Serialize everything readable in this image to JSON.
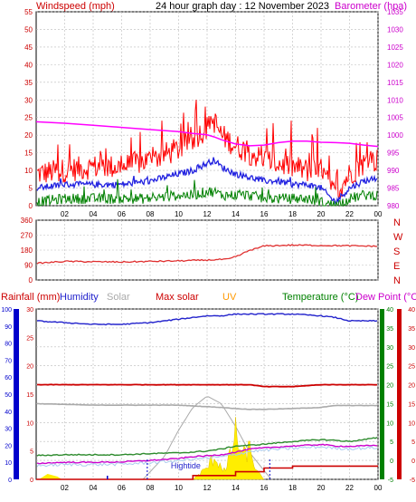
{
  "header": {
    "left_label": "Windspeed (mph)",
    "title": "24 hour graph day : 12 November 2023",
    "right_label": "Barometer (hpa)"
  },
  "legend_row": {
    "rainfall": "Rainfall (mm)",
    "humidity": "Humidity",
    "solar": "Solar",
    "max_solar": "Max solar",
    "uv": "UV",
    "temperature": "Temperature (°C)",
    "dew_point": "Dew Point (°C)"
  },
  "hightide_label": "Hightide",
  "x_ticks": [
    "02",
    "04",
    "06",
    "08",
    "10",
    "12",
    "14",
    "16",
    "18",
    "20",
    "22",
    "00"
  ],
  "colors": {
    "wind_gust": "#ff0000",
    "wind_avg": "#2323e0",
    "wind_low": "#008000",
    "barometer": "#ff00ff",
    "direction": "#e03030",
    "rain_axis": "#0000cc",
    "humidity": "#2222cc",
    "max_solar": "#cc0000",
    "solar": "#aaaaaa",
    "uv": "#ff9900",
    "temperature": "#2e8b2e",
    "dew_point": "#cc00cc",
    "rain_total": "#cc0000",
    "solar_fill": "#ffee00"
  },
  "chart_data": [
    {
      "type": "line",
      "title": "24 hour graph day : 12 November 2023",
      "ylabel": "Windspeed (mph)",
      "y2label": "Barometer (hpa)",
      "ylim": [
        0,
        55
      ],
      "y2lim": [
        980,
        1035
      ],
      "yticks": [
        "0",
        "5",
        "10",
        "15",
        "20",
        "25",
        "30",
        "35",
        "40",
        "45",
        "50",
        "55"
      ],
      "y2ticks": [
        "980",
        "985",
        "990",
        "995",
        "1000",
        "1005",
        "1010",
        "1015",
        "1020",
        "1025",
        "1030",
        "1035"
      ],
      "x_hours": [
        0,
        2,
        4,
        6,
        8,
        10,
        11,
        12,
        12.5,
        13,
        14,
        15,
        16,
        17,
        18,
        19,
        20,
        21,
        22,
        23,
        24
      ],
      "series": [
        {
          "name": "Gust",
          "values": [
            9,
            10,
            11,
            11,
            13,
            16,
            19,
            22,
            24,
            20,
            17,
            15,
            13,
            12,
            11,
            10,
            10,
            3,
            9,
            12,
            13
          ]
        },
        {
          "name": "Average",
          "values": [
            5,
            6,
            6,
            6,
            7,
            9,
            10,
            12,
            13,
            11,
            9,
            8,
            7,
            7,
            6,
            6,
            5,
            1,
            5,
            7,
            8
          ]
        },
        {
          "name": "Low",
          "values": [
            1,
            2,
            2,
            2,
            2,
            3,
            3,
            4,
            4,
            3,
            3,
            3,
            2,
            2,
            2,
            2,
            1,
            0,
            2,
            3,
            3
          ]
        },
        {
          "name": "Barometer",
          "values": [
            1003.8,
            1003.4,
            1002.8,
            1002.2,
            1001.6,
            1001.0,
            1000.5,
            1000.1,
            999.5,
            998.7,
            997.5,
            997.0,
            997.2,
            997.9,
            998.3,
            998.3,
            998.0,
            997.9,
            997.7,
            997.2,
            996.8
          ]
        }
      ]
    },
    {
      "type": "line",
      "ylabel": "Wind direction",
      "yticks": [
        "0",
        "90",
        "180",
        "270",
        "360"
      ],
      "direction_labels": [
        "N",
        "W",
        "S",
        "E",
        "N"
      ],
      "ylim": [
        0,
        360
      ],
      "x_hours": [
        0,
        2,
        4,
        6,
        8,
        10,
        12,
        13.5,
        14.3,
        15,
        15.5,
        16,
        18,
        20,
        22,
        24
      ],
      "series": [
        {
          "name": "Direction",
          "values": [
            100,
            112,
            110,
            108,
            112,
            115,
            120,
            125,
            150,
            180,
            190,
            205,
            210,
            208,
            206,
            203
          ]
        }
      ]
    },
    {
      "type": "line",
      "ylabel": "Rainfall (mm)",
      "rain_ticks": [
        "0",
        "10",
        "20",
        "30",
        "40",
        "50",
        "60",
        "70",
        "80",
        "90",
        "100"
      ],
      "humidity_ticks": [
        "0",
        "5",
        "10",
        "15",
        "20",
        "25",
        "30"
      ],
      "temp_left_ticks": [
        "-5",
        "0",
        "5",
        "10",
        "15",
        "20",
        "25",
        "30",
        "35",
        "40"
      ],
      "temp_right_ticks": [
        "-5",
        "0",
        "5",
        "10",
        "15",
        "20",
        "25",
        "30",
        "35",
        "40"
      ],
      "x_hours": [
        0,
        2,
        4,
        6,
        8,
        10,
        11,
        12,
        13,
        14,
        15,
        16,
        18,
        20,
        21,
        22,
        24
      ],
      "series": [
        {
          "name": "Humidity",
          "values": [
            93,
            92,
            91,
            91,
            92,
            94,
            95,
            96,
            96,
            97,
            97,
            97,
            97,
            96,
            95,
            93,
            93
          ]
        },
        {
          "name": "Max solar",
          "values": [
            20,
            20,
            20,
            20,
            20,
            20,
            20,
            20,
            20,
            20,
            20,
            19.5,
            19.5,
            20,
            20,
            20,
            20
          ]
        },
        {
          "name": "Solar",
          "values": [
            15,
            14.8,
            14.6,
            14.6,
            14.6,
            14.6,
            14.4,
            14.2,
            14,
            13.7,
            13.5,
            13.5,
            13.7,
            14,
            14.5,
            14.5,
            14.5
          ]
        },
        {
          "name": "Temperature",
          "values": [
            1.3,
            1.5,
            1.5,
            1.5,
            1.8,
            2.0,
            2.2,
            2.5,
            3.0,
            3.8,
            4.0,
            4.3,
            5.0,
            5.5,
            5.3,
            5.0,
            6.0
          ]
        },
        {
          "name": "Dew Point",
          "values": [
            -0.8,
            -0.5,
            -0.5,
            -0.4,
            0,
            0.5,
            1.0,
            1.2,
            1.5,
            2.2,
            3.0,
            3.3,
            3.8,
            4.2,
            3.8,
            3.7,
            4.0
          ]
        },
        {
          "name": "Rainfall",
          "values": [
            0,
            0,
            0,
            0,
            0,
            0,
            1,
            1,
            1,
            2,
            2,
            3,
            3.5,
            3.5,
            3.5,
            3.5,
            3.5
          ]
        }
      ],
      "solar_curve": {
        "x_hours": [
          7.5,
          9,
          10,
          11,
          12,
          13,
          14,
          15,
          16.5
        ],
        "values": [
          0,
          6,
          13,
          19,
          22,
          20,
          14,
          7,
          0
        ]
      },
      "solar_actual": {
        "x_hours": [
          11,
          12,
          12.5,
          13.3,
          14,
          14.5,
          15,
          15.5,
          16
        ],
        "values": [
          0,
          3,
          6,
          2,
          12,
          6,
          8,
          2,
          0
        ]
      }
    }
  ]
}
